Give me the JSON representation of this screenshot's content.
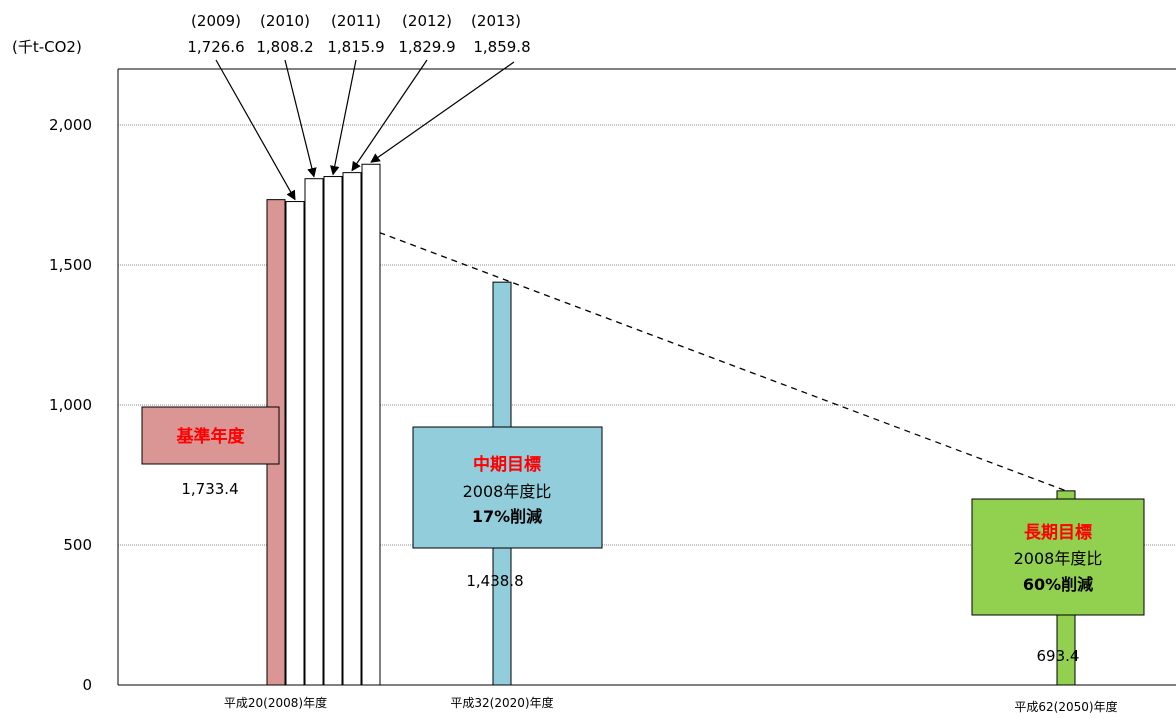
{
  "chart_data": {
    "type": "bar",
    "unit_label": "(千t-CO2)",
    "yticks": [
      0,
      500,
      1000,
      1500,
      2000
    ],
    "ytick_labels": [
      "0",
      "500",
      "1,000",
      "1,500",
      "2,000"
    ],
    "ylim": [
      0,
      2200
    ],
    "grid": true,
    "bars": [
      {
        "key": "base2008",
        "value": 1733.4,
        "label": "1,733.4",
        "color": "#d99694",
        "x": 2008.0
      },
      {
        "key": "y2009",
        "value": 1726.6,
        "year_label": "(2009)",
        "label": "1,726.6",
        "color": "#ffffff",
        "x": 2009
      },
      {
        "key": "y2010",
        "value": 1808.2,
        "year_label": "(2010)",
        "label": "1,808.2",
        "color": "#ffffff",
        "x": 2010
      },
      {
        "key": "y2011",
        "value": 1815.9,
        "year_label": "(2011)",
        "label": "1,815.9",
        "color": "#ffffff",
        "x": 2011
      },
      {
        "key": "y2012",
        "value": 1829.9,
        "year_label": "(2012)",
        "label": "1,829.9",
        "color": "#ffffff",
        "x": 2012
      },
      {
        "key": "y2013",
        "value": 1859.8,
        "year_label": "(2013)",
        "label": "1,859.8",
        "color": "#ffffff",
        "x": 2013
      },
      {
        "key": "target2020",
        "value": 1438.8,
        "label": "1,438.8",
        "color": "#92cddc",
        "x": 2020
      },
      {
        "key": "target2050",
        "value": 693.4,
        "label": "693.4",
        "color": "#92d050",
        "x": 2050
      }
    ],
    "trend_line": {
      "from": {
        "x": 2009,
        "y": 1726.6
      },
      "to": {
        "x": 2050,
        "y": 693.4
      },
      "style": "dashed"
    },
    "category_labels": [
      {
        "x": 2008.5,
        "text": "平成20(2008)年度"
      },
      {
        "x": 2020,
        "text": "平成32(2020)年度"
      },
      {
        "x": 2050,
        "text": "平成62(2050)年度"
      }
    ],
    "boxes": {
      "base": {
        "title": "基準年度",
        "color": "#d99694"
      },
      "mid": {
        "title": "中期目標",
        "line2": "2008年度比",
        "line3": "17%削減",
        "color": "#92cddc"
      },
      "long": {
        "title": "長期目標",
        "line2": "2008年度比",
        "line3": "60%削減",
        "color": "#92d050"
      }
    }
  }
}
